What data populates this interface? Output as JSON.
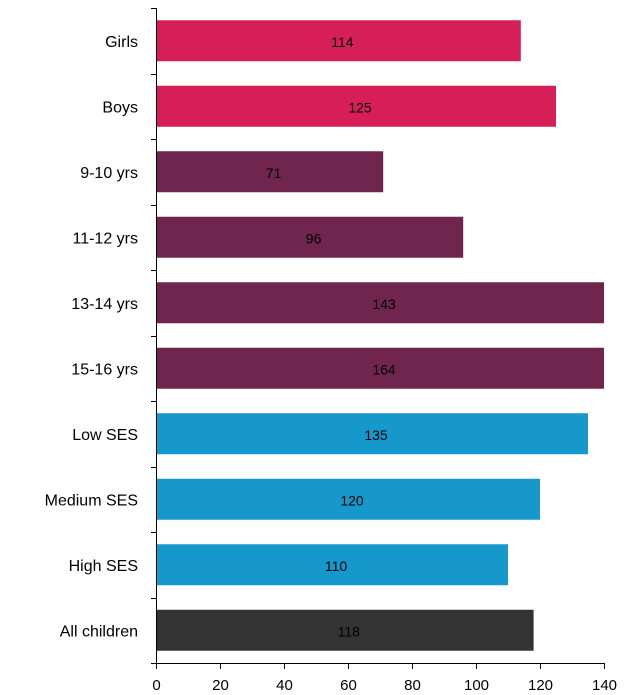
{
  "chart_data": {
    "type": "bar",
    "orientation": "horizontal",
    "categories": [
      "Girls",
      "Boys",
      "9-10 yrs",
      "11-12 yrs",
      "13-14 yrs",
      "15-16 yrs",
      "Low SES",
      "Medium SES",
      "High SES",
      "All children"
    ],
    "values": [
      114,
      125,
      71,
      96,
      143,
      164,
      135,
      120,
      110,
      118
    ],
    "data_labels": [
      "114",
      "125",
      "71",
      "96",
      "143",
      "164",
      "135",
      "120",
      "110",
      "118"
    ],
    "bar_colors": [
      "#d61f58",
      "#d61f58",
      "#70254e",
      "#70254e",
      "#70254e",
      "#70254e",
      "#1798cc",
      "#1798cc",
      "#1798cc",
      "#333333"
    ],
    "xlim": [
      0,
      140
    ],
    "x_ticks": [
      "0",
      "20",
      "40",
      "60",
      "80",
      "100",
      "120",
      "140"
    ],
    "values_clipped_at_axis_max": true,
    "grid": false,
    "legend": "none",
    "title": "",
    "xlabel": "",
    "ylabel": ""
  }
}
